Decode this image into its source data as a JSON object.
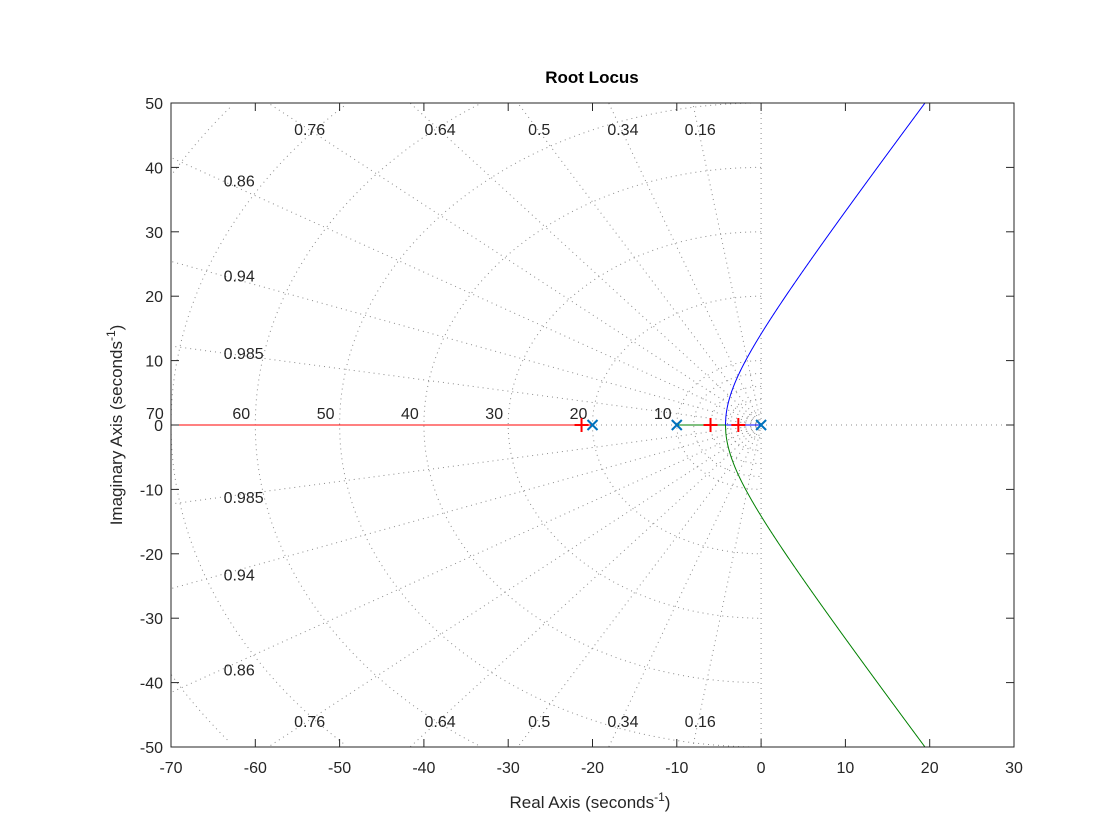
{
  "chart_data": {
    "type": "line",
    "title": "Root Locus",
    "xlabel": "Real Axis (seconds",
    "xlabel_sup": "-1",
    "xlabel_end": ")",
    "ylabel": "Imaginary Axis (seconds",
    "ylabel_sup": "-1",
    "ylabel_end": ")",
    "xlim": [
      -70,
      30
    ],
    "ylim": [
      -50,
      50
    ],
    "xticks": [
      -70,
      -60,
      -50,
      -40,
      -30,
      -20,
      -10,
      0,
      10,
      20,
      30
    ],
    "yticks": [
      -50,
      -40,
      -30,
      -20,
      -10,
      0,
      10,
      20,
      30,
      40,
      50
    ],
    "grid": "s-plane damping/frequency grid",
    "damping_labels": [
      "0.16",
      "0.34",
      "0.5",
      "0.64",
      "0.76",
      "0.86",
      "0.94",
      "0.985"
    ],
    "frequency_labels": [
      "10",
      "20",
      "30",
      "40",
      "50",
      "60",
      "70"
    ],
    "open_loop_poles": [
      0,
      -10,
      -20
    ],
    "closed_loop_poles": [
      -21.3,
      -6.0,
      -2.7
    ],
    "breakaway_point": -4.23,
    "branch_colors": {
      "upper": "#0000ff",
      "lower": "#008000",
      "real_left": "#ff0000"
    },
    "pole_marker_color": "#0072bd",
    "closed_loop_marker_color": "#ff0000"
  }
}
